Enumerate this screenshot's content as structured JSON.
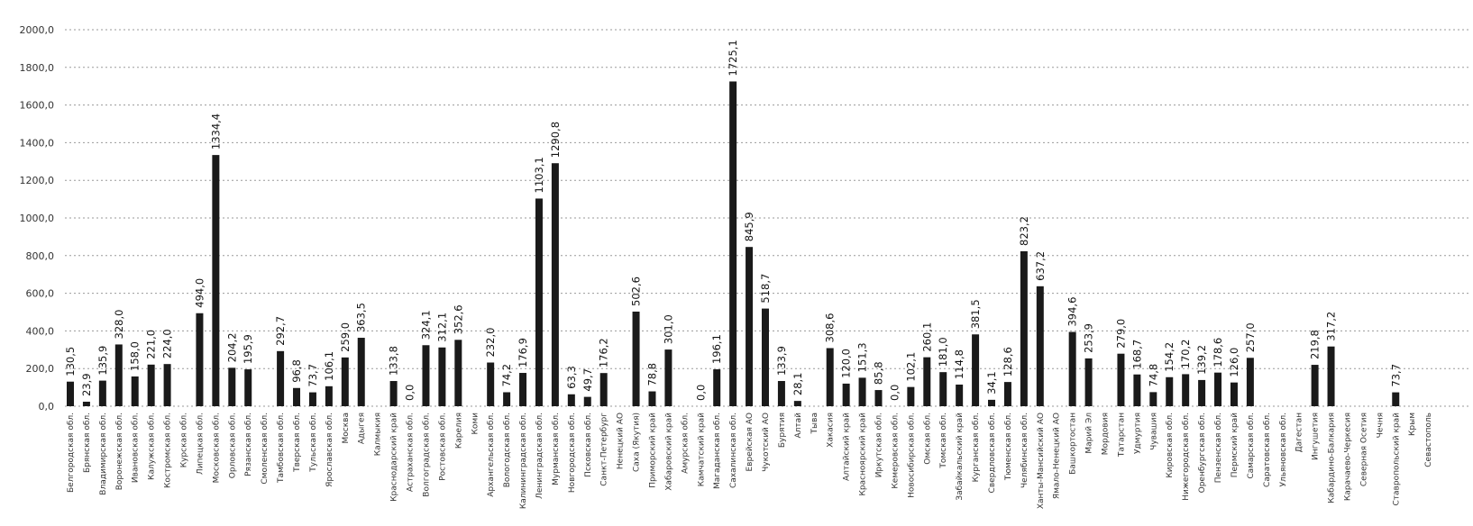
{
  "chart_data": {
    "type": "bar",
    "title": "",
    "xlabel": "",
    "ylabel": "",
    "ylim": [
      0,
      2000
    ],
    "yticks": [
      "0,0",
      "200,0",
      "400,0",
      "600,0",
      "800,0",
      "1000,0",
      "1200,0",
      "1400,0",
      "1600,0",
      "1800,0",
      "2000,0"
    ],
    "grid": true,
    "legend": "none",
    "bar_color": "#1a1a1a",
    "categories": [
      "Белгородская обл.",
      "Брянская обл.",
      "Владимирская обл.",
      "Воронежская обл.",
      "Ивановская обл.",
      "Калужская обл.",
      "Костромская обл.",
      "Курская обл.",
      "Липецкая обл.",
      "Московская обл.",
      "Орловская обл.",
      "Рязанская обл.",
      "Смоленская обл.",
      "Тамбовская обл.",
      "Тверская обл.",
      "Тульская обл.",
      "Ярославская обл.",
      "Москва",
      "Адыгея",
      "Калмыкия",
      "Краснодарский край",
      "Астраханская обл.",
      "Волгоградская обл.",
      "Ростовская обл.",
      "Карелия",
      "Коми",
      "Архангельская обл.",
      "Вологодская обл.",
      "Калининградская обл.",
      "Ленинградская обл.",
      "Мурманская обл.",
      "Новгородская обл.",
      "Псковская обл.",
      "Санкт-Петербург",
      "Ненецкий АО",
      "Саха (Якутия)",
      "Приморский край",
      "Хабаровский край",
      "Амурская обл.",
      "Камчатский край",
      "Магаданская обл.",
      "Сахалинская обл.",
      "Еврейская АО",
      "Чукотский АО",
      "Бурятия",
      "Алтай",
      "Тыва",
      "Хакасия",
      "Алтайский край",
      "Красноярский край",
      "Иркутская обл.",
      "Кемеровская обл.",
      "Новосибирская обл.",
      "Омская обл.",
      "Томская обл.",
      "Забайкальский край",
      "Курганская обл.",
      "Свердловская обл.",
      "Тюменская обл.",
      "Челябинская обл.",
      "Ханты-Мансийский АО",
      "Ямало-Ненецкий АО",
      "Башкортостан",
      "Марий Эл",
      "Мордовия",
      "Татарстан",
      "Удмуртия",
      "Чувашия",
      "Кировская обл.",
      "Нижегородская обл.",
      "Оренбургская обл.",
      "Пензенская обл.",
      "Пермский край",
      "Самарская обл.",
      "Саратовская обл.",
      "Ульяновская обл.",
      "Дагестан",
      "Ингушетия",
      "Кабардино-Балкария",
      "Карачаево-Черкесия",
      "Северная Осетия",
      "Чечня",
      "Ставропольский край",
      "Крым",
      "Севастополь"
    ],
    "values": [
      130.5,
      23.9,
      135.9,
      328.0,
      158.0,
      221.0,
      224.0,
      null,
      494.0,
      1334.4,
      204.2,
      195.9,
      null,
      292.7,
      96.8,
      73.7,
      106.1,
      259.0,
      363.5,
      null,
      133.8,
      0.0,
      324.1,
      312.1,
      352.6,
      null,
      232.0,
      74.2,
      176.9,
      1103.1,
      1290.8,
      63.3,
      49.7,
      176.2,
      null,
      502.6,
      78.8,
      301.0,
      null,
      0.0,
      196.1,
      1725.1,
      845.9,
      518.7,
      133.9,
      28.1,
      null,
      308.6,
      120.0,
      151.3,
      85.8,
      0.0,
      102.1,
      260.1,
      181.0,
      114.8,
      381.5,
      34.1,
      128.6,
      823.2,
      637.2,
      null,
      394.6,
      253.9,
      null,
      279.0,
      168.7,
      74.8,
      154.2,
      170.2,
      139.2,
      178.6,
      126.0,
      257.0,
      null,
      null,
      null,
      219.8,
      317.2,
      null,
      null,
      null,
      73.7,
      null,
      null
    ],
    "data_labels": [
      "130,5",
      "23,9",
      "135,9",
      "328,0",
      "158,0",
      "221,0",
      "224,0",
      "",
      "494,0",
      "1334,4",
      "204,2",
      "195,9",
      "",
      "292,7",
      "96,8",
      "73,7",
      "106,1",
      "259,0",
      "363,5",
      "",
      "133,8",
      "0,0",
      "324,1",
      "312,1",
      "352,6",
      "",
      "232,0",
      "74,2",
      "176,9",
      "1103,1",
      "1290,8",
      "63,3",
      "49,7",
      "176,2",
      "",
      "502,6",
      "78,8",
      "301,0",
      "",
      "0,0",
      "196,1",
      "1725,1",
      "845,9",
      "518,7",
      "133,9",
      "28,1",
      "",
      "308,6",
      "120,0",
      "151,3",
      "85,8",
      "0,0",
      "102,1",
      "260,1",
      "181,0",
      "114,8",
      "381,5",
      "34,1",
      "128,6",
      "823,2",
      "637,2",
      "",
      "394,6",
      "253,9",
      "",
      "279,0",
      "168,7",
      "74,8",
      "154,2",
      "170,2",
      "139,2",
      "178,6",
      "126,0",
      "257,0",
      "",
      "",
      "",
      "219,8",
      "317,2",
      "",
      "",
      "",
      "73,7",
      "",
      ""
    ]
  }
}
